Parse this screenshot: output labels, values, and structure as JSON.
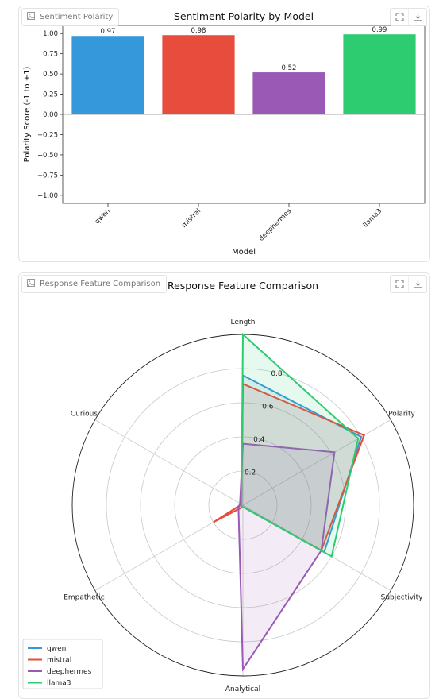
{
  "charts": [
    {
      "badge_label": "Sentiment Polarity",
      "icons": [
        "image-icon",
        "expand-icon",
        "download-icon"
      ]
    },
    {
      "badge_label": "Response Feature Comparison",
      "icons": [
        "image-icon",
        "expand-icon",
        "download-icon"
      ]
    }
  ],
  "chart_data": [
    {
      "type": "bar",
      "title": "Sentiment Polarity by Model",
      "xlabel": "Model",
      "ylabel": "Polarity Score (-1 to +1)",
      "categories": [
        "qwen",
        "mistral",
        "deephermes",
        "llama3"
      ],
      "values": [
        0.97,
        0.98,
        0.52,
        0.99
      ],
      "value_labels": [
        "0.97",
        "0.98",
        "0.52",
        "0.99"
      ],
      "colors": [
        "#3498db",
        "#e74c3c",
        "#9b59b6",
        "#2ecc71"
      ],
      "ylim": [
        -1.1,
        1.1
      ],
      "yticks": [
        "1.00",
        "0.75",
        "0.50",
        "0.25",
        "0.00",
        "−0.25",
        "−0.50",
        "−0.75",
        "−1.00"
      ],
      "ytick_values": [
        1.0,
        0.75,
        0.5,
        0.25,
        0.0,
        -0.25,
        -0.5,
        -0.75,
        -1.0
      ],
      "zero_line": true,
      "grid": false
    },
    {
      "type": "radar",
      "title": "Response Feature Comparison",
      "axes": [
        "Length",
        "Polarity",
        "Subjectivity",
        "Analytical",
        "Empathetic",
        "Curious"
      ],
      "rlim": [
        0,
        1.0
      ],
      "rticks": [
        0.2,
        0.4,
        0.6,
        0.8
      ],
      "rtick_labels": [
        "0.2",
        "0.4",
        "0.6",
        "0.8"
      ],
      "legend_placement": "lower-left",
      "series": [
        {
          "name": "qwen",
          "color": "#3498db",
          "values": [
            0.76,
            0.8,
            0.55,
            0.01,
            0.01,
            0.01
          ]
        },
        {
          "name": "mistral",
          "color": "#e74c3c",
          "values": [
            0.71,
            0.82,
            0.53,
            0.01,
            0.2,
            0.01
          ]
        },
        {
          "name": "deephermes",
          "color": "#9b59b6",
          "values": [
            0.36,
            0.62,
            0.53,
            0.96,
            0.03,
            0.02
          ]
        },
        {
          "name": "llama3",
          "color": "#2ecc71",
          "values": [
            1.0,
            0.78,
            0.6,
            0.01,
            0.01,
            0.01
          ]
        }
      ]
    }
  ]
}
